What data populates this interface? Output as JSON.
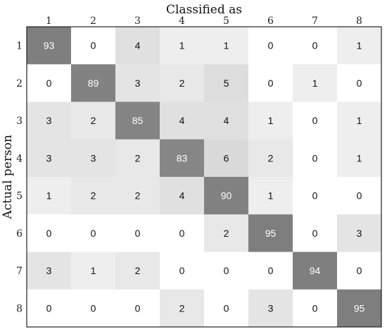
{
  "chart_data": {
    "type": "heatmap",
    "title": "",
    "xlabel": "Classified as",
    "ylabel": "Actual person",
    "x_categories": [
      "1",
      "2",
      "3",
      "4",
      "5",
      "6",
      "7",
      "8"
    ],
    "y_categories": [
      "1",
      "2",
      "3",
      "4",
      "5",
      "6",
      "7",
      "8"
    ],
    "values": [
      [
        93,
        0,
        4,
        1,
        1,
        0,
        0,
        1
      ],
      [
        0,
        89,
        3,
        2,
        5,
        0,
        1,
        0
      ],
      [
        3,
        2,
        85,
        4,
        4,
        1,
        0,
        1
      ],
      [
        3,
        3,
        2,
        83,
        6,
        2,
        0,
        1
      ],
      [
        1,
        2,
        2,
        4,
        90,
        1,
        0,
        0
      ],
      [
        0,
        0,
        0,
        0,
        2,
        95,
        0,
        3
      ],
      [
        3,
        1,
        2,
        0,
        0,
        0,
        94,
        0
      ],
      [
        0,
        0,
        0,
        2,
        0,
        3,
        0,
        95
      ]
    ],
    "x_axis_position": "top",
    "colormap": "grayscale-reversed",
    "colors": {
      "high": "#7b7b7b",
      "low": "#ffffff",
      "frame": "#222222"
    }
  }
}
